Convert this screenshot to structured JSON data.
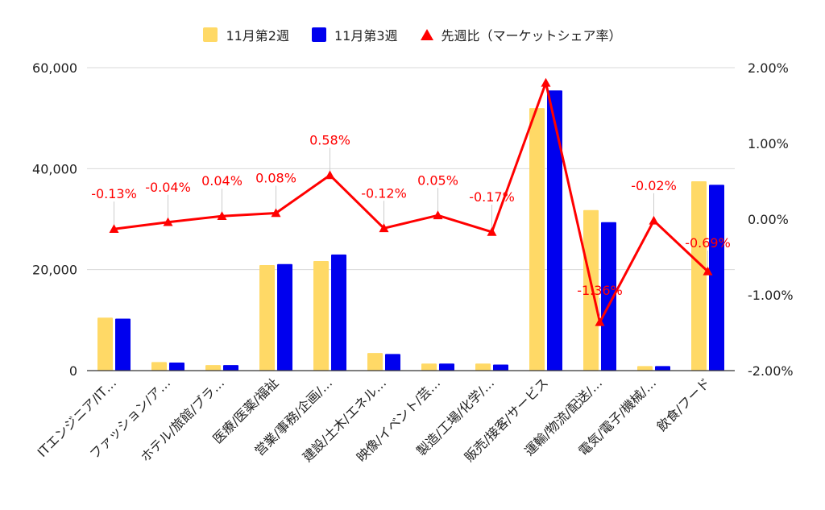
{
  "legend": [
    {
      "label": "11月第2週",
      "color": "#ffd966",
      "marker": "square"
    },
    {
      "label": "11月第3週",
      "color": "#0000ee",
      "marker": "square"
    },
    {
      "label": "先週比（マーケットシェア率）",
      "color": "#ff0000",
      "marker": "triangle"
    }
  ],
  "chart_data": {
    "type": "bar",
    "categories": [
      "ITエンジニア/IT…",
      "ファッション/ア…",
      "ホテル/旅館/ブラ…",
      "医療/医薬/福祉",
      "営業/事務/企画/…",
      "建設/土木/エネル…",
      "映像/イベント/芸…",
      "製造/工場/化学/…",
      "販売/接客/サービス",
      "運輸/物流/配送/…",
      "電気/電子/機械/…",
      "飲食/フード"
    ],
    "series": [
      {
        "name": "11月第2週",
        "type": "bar",
        "axis": "left",
        "color": "#ffd966",
        "values": [
          10500,
          1700,
          1100,
          20900,
          21700,
          3500,
          1400,
          1400,
          52000,
          31800,
          900,
          37500
        ]
      },
      {
        "name": "11月第3週",
        "type": "bar",
        "axis": "left",
        "color": "#0000ee",
        "values": [
          10300,
          1600,
          1100,
          21100,
          23000,
          3300,
          1400,
          1200,
          55500,
          29400,
          900,
          36800
        ]
      },
      {
        "name": "先週比（マーケットシェア率）",
        "type": "line",
        "axis": "right",
        "color": "#ff0000",
        "values": [
          -0.13,
          -0.04,
          0.04,
          0.08,
          0.58,
          -0.12,
          0.05,
          -0.17,
          1.8,
          -1.36,
          -0.02,
          -0.69
        ],
        "labels": [
          "-0.13%",
          "-0.04%",
          "0.04%",
          "0.08%",
          "0.58%",
          "-0.12%",
          "0.05%",
          "-0.17%",
          "",
          "-1.36%",
          "-0.02%",
          "-0.69%"
        ]
      }
    ],
    "y_left": {
      "ylim": [
        0,
        60000
      ],
      "ticks": [
        0,
        20000,
        40000,
        60000
      ],
      "tick_labels": [
        "0",
        "20,000",
        "40,000",
        "60,000"
      ]
    },
    "y_right": {
      "ylim": [
        -2,
        2
      ],
      "ticks": [
        -2,
        -1,
        0,
        1,
        2
      ],
      "tick_labels": [
        "-2.00%",
        "-1.00%",
        "0.00%",
        "1.00%",
        "2.00%"
      ]
    },
    "grid": true,
    "legend_position": "top"
  }
}
